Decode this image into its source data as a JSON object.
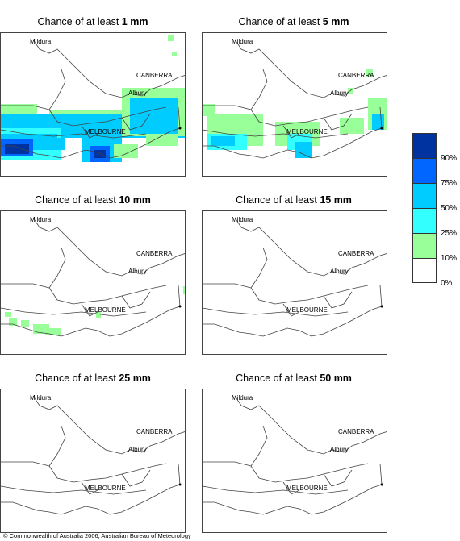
{
  "panels": [
    {
      "title_prefix": "Chance of at least ",
      "amount": "1 mm"
    },
    {
      "title_prefix": "Chance of at least ",
      "amount": "5 mm"
    },
    {
      "title_prefix": "Chance of at least ",
      "amount": "10 mm"
    },
    {
      "title_prefix": "Chance of at least ",
      "amount": "15 mm"
    },
    {
      "title_prefix": "Chance of at least ",
      "amount": "25 mm"
    },
    {
      "title_prefix": "Chance of at least ",
      "amount": "50 mm"
    }
  ],
  "places": {
    "mildura": "Mildura",
    "canberra": "CANBERRA",
    "albury": "Albury",
    "melbourne": "MELBOURNE"
  },
  "legend": {
    "labels": [
      "90%",
      "75%",
      "50%",
      "25%",
      "10%",
      "0%"
    ],
    "colors": [
      "#0033a0",
      "#0066ff",
      "#00ccff",
      "#33ffff",
      "#99ff99",
      "#ffffff"
    ]
  },
  "footer": "© Commonwealth of Australia 2006, Australian Bureau of Meteorology"
}
